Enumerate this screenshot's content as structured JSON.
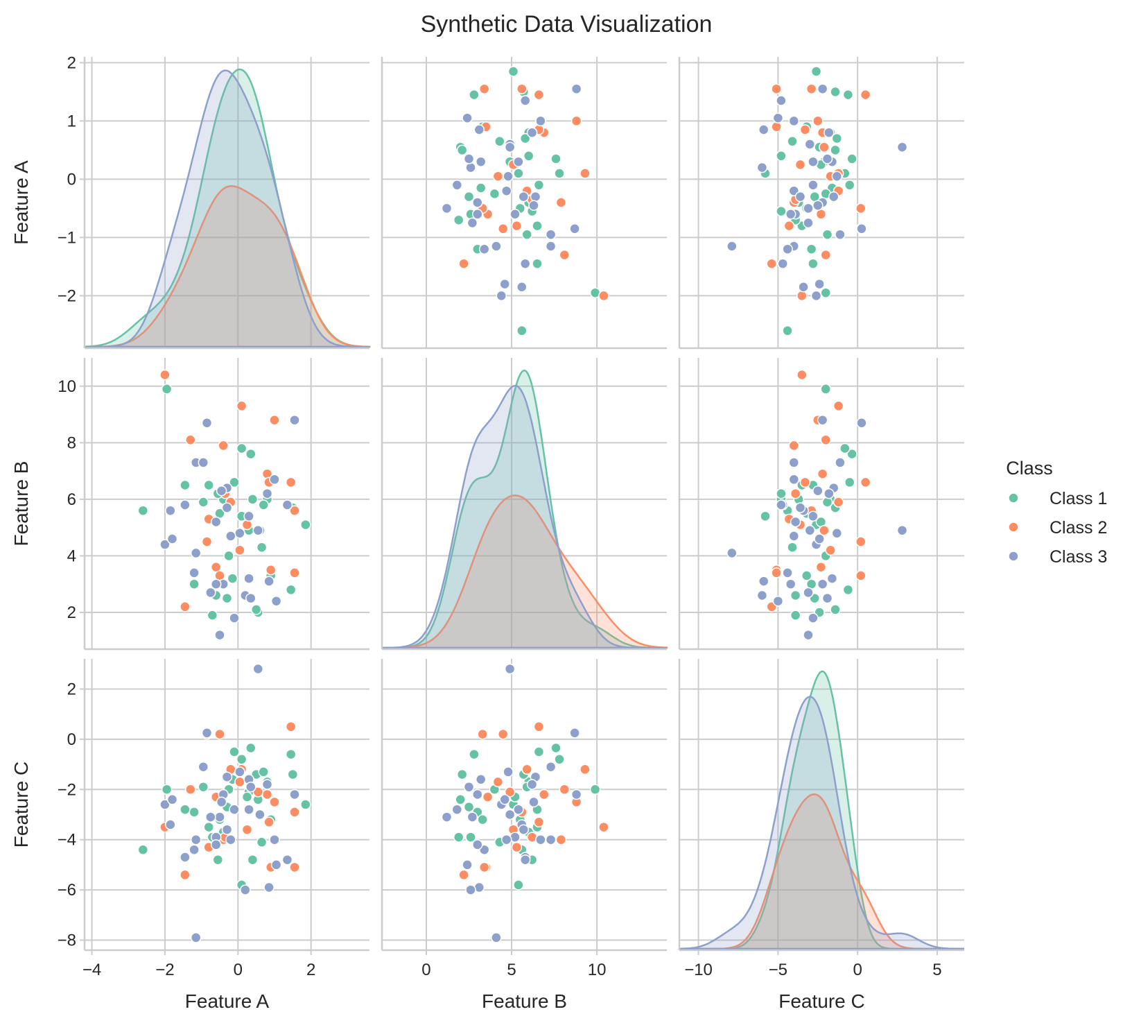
{
  "chart_data": {
    "type": "scatter",
    "title": "Synthetic Data Visualization",
    "features": [
      "Feature A",
      "Feature B",
      "Feature C"
    ],
    "axes": {
      "Feature A": {
        "range": [
          -4.2,
          3.6
        ],
        "ticks": [
          -4,
          -2,
          0,
          2
        ]
      },
      "Feature B": {
        "range": [
          -2.6,
          14.1
        ],
        "ticks": [
          0,
          5,
          10
        ]
      },
      "Feature C": {
        "range": [
          -11.2,
          6.7
        ],
        "ticks": [
          -10,
          -5,
          0,
          5
        ]
      }
    },
    "row_axes": {
      "Feature A": {
        "range": [
          -2.9,
          2.1
        ],
        "ticks": [
          -2,
          -1,
          0,
          1,
          2
        ]
      },
      "Feature B": {
        "range": [
          0.7,
          11.0
        ],
        "ticks": [
          2,
          4,
          6,
          8,
          10
        ]
      },
      "Feature C": {
        "range": [
          -8.4,
          3.2
        ],
        "ticks": [
          -8,
          -6,
          -4,
          -2,
          0,
          2
        ]
      }
    },
    "diagonal": "kde",
    "offdiagonal": "scatter",
    "grid": true,
    "legend": {
      "title": "Class",
      "placement": "right"
    },
    "series": [
      {
        "name": "Class 1",
        "color": "#66c2a5",
        "points": [
          [
            1.85,
            5.1,
            -2.6
          ],
          [
            -2.6,
            5.6,
            -4.4
          ],
          [
            -1.95,
            9.9,
            -2.0
          ],
          [
            -0.1,
            6.6,
            -0.5
          ],
          [
            0.35,
            7.6,
            -0.35
          ],
          [
            0.1,
            7.8,
            -0.8
          ],
          [
            0.55,
            2.0,
            -2.4
          ],
          [
            0.3,
            4.9,
            -2.1
          ],
          [
            0.8,
            6.0,
            -1.7
          ],
          [
            -1.2,
            3.0,
            -2.9
          ],
          [
            -0.8,
            6.5,
            -3.5
          ],
          [
            -0.5,
            5.5,
            -3.2
          ],
          [
            -0.3,
            2.5,
            -2.7
          ],
          [
            0.4,
            6.0,
            -4.8
          ],
          [
            0.65,
            4.3,
            -4.1
          ],
          [
            1.45,
            2.8,
            -0.6
          ],
          [
            -1.45,
            6.5,
            -2.8
          ],
          [
            -0.7,
            1.9,
            -3.9
          ],
          [
            -0.15,
            3.2,
            -1.6
          ],
          [
            0.25,
            5.2,
            -2.3
          ],
          [
            -0.95,
            5.9,
            -1.9
          ],
          [
            0.5,
            2.1,
            -1.4
          ],
          [
            -0.4,
            6.0,
            -3.7
          ],
          [
            0.9,
            3.3,
            -3.2
          ],
          [
            -0.55,
            6.2,
            -4.8
          ],
          [
            0.1,
            5.4,
            -5.8
          ],
          [
            -0.25,
            4.0,
            -2.0
          ],
          [
            0.7,
            5.8,
            -1.3
          ],
          [
            1.5,
            5.7,
            -1.4
          ],
          [
            -0.6,
            2.6,
            -3.9
          ]
        ]
      },
      {
        "name": "Class 2",
        "color": "#fc8d62",
        "points": [
          [
            -2.0,
            10.4,
            -3.5
          ],
          [
            -1.45,
            2.2,
            -5.4
          ],
          [
            0.1,
            9.3,
            -1.2
          ],
          [
            1.0,
            8.8,
            -2.5
          ],
          [
            -1.3,
            8.1,
            -2.0
          ],
          [
            -0.4,
            7.9,
            -4.0
          ],
          [
            0.8,
            6.9,
            -2.2
          ],
          [
            1.45,
            6.6,
            0.5
          ],
          [
            0.85,
            6.6,
            -3.3
          ],
          [
            1.55,
            5.6,
            -2.9
          ],
          [
            -0.2,
            5.9,
            -1.2
          ],
          [
            -0.35,
            6.2,
            -3.9
          ],
          [
            0.25,
            5.1,
            -3.6
          ],
          [
            -0.85,
            4.5,
            0.2
          ],
          [
            0.55,
            4.9,
            -2.1
          ],
          [
            -0.6,
            3.6,
            -2.3
          ],
          [
            0.9,
            3.5,
            -5.1
          ],
          [
            1.55,
            3.4,
            -5.1
          ],
          [
            -0.5,
            3.3,
            0.2
          ],
          [
            0.05,
            4.2,
            -1.7
          ],
          [
            -0.8,
            5.3,
            -4.3
          ]
        ]
      },
      {
        "name": "Class 3",
        "color": "#8da0cb",
        "points": [
          [
            1.55,
            8.8,
            -2.2
          ],
          [
            -0.85,
            8.7,
            0.25
          ],
          [
            -1.15,
            7.3,
            -4.0
          ],
          [
            -0.95,
            7.3,
            -1.1
          ],
          [
            1.0,
            6.7,
            -4.0
          ],
          [
            -0.3,
            6.4,
            -1.5
          ],
          [
            -1.45,
            5.8,
            -4.7
          ],
          [
            -1.85,
            5.6,
            -3.4
          ],
          [
            -0.6,
            5.2,
            -3.9
          ],
          [
            -2.0,
            4.4,
            -2.6
          ],
          [
            -1.8,
            4.6,
            -2.4
          ],
          [
            0.05,
            4.8,
            -1.3
          ],
          [
            0.6,
            4.9,
            -3.0
          ],
          [
            -0.2,
            4.7,
            -4.0
          ],
          [
            1.35,
            5.8,
            -4.8
          ],
          [
            -0.4,
            3.0,
            -2.2
          ],
          [
            0.3,
            3.2,
            -1.6
          ],
          [
            -1.2,
            3.4,
            -4.4
          ],
          [
            0.85,
            3.1,
            -5.9
          ],
          [
            1.05,
            2.4,
            -5.0
          ],
          [
            -0.1,
            1.8,
            -2.8
          ],
          [
            -0.5,
            1.2,
            -3.1
          ],
          [
            0.2,
            2.6,
            -6.0
          ],
          [
            -1.15,
            4.1,
            -7.9
          ],
          [
            0.55,
            4.9,
            2.8
          ],
          [
            -0.6,
            3.0,
            -4.2
          ],
          [
            0.3,
            5.4,
            -2.8
          ],
          [
            -0.3,
            5.7,
            -3.6
          ],
          [
            0.8,
            6.2,
            -1.8
          ],
          [
            -0.75,
            2.7,
            -3.1
          ],
          [
            0.35,
            2.5,
            -1.9
          ],
          [
            -0.45,
            6.3,
            -2.5
          ]
        ]
      }
    ]
  }
}
